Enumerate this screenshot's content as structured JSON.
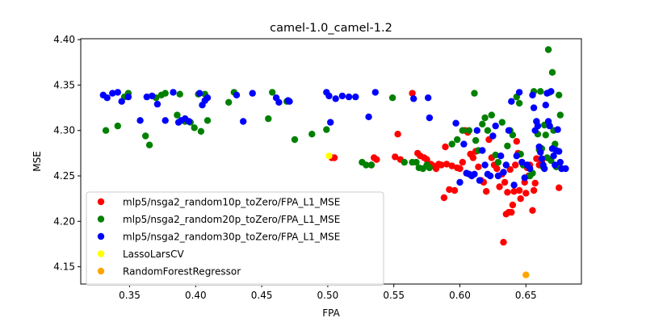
{
  "chart_data": {
    "type": "scatter",
    "title": "camel-1.0_camel-1.2",
    "xlabel": "FPA",
    "ylabel": "MSE",
    "xlim": [
      0.313,
      0.692
    ],
    "ylim": [
      4.131,
      4.401
    ],
    "xticks": [
      0.35,
      0.4,
      0.45,
      0.5,
      0.55,
      0.6,
      0.65
    ],
    "xtick_labels": [
      "0.35",
      "0.40",
      "0.45",
      "0.50",
      "0.55",
      "0.60",
      "0.65"
    ],
    "yticks": [
      4.15,
      4.2,
      4.25,
      4.3,
      4.35,
      4.4
    ],
    "ytick_labels": [
      "4.15",
      "4.20",
      "4.25",
      "4.30",
      "4.35",
      "4.40"
    ],
    "legend_position": "lower-left",
    "series": [
      {
        "name": "mlp5/nsga2_random10p_toZero/FPA_L1_MSE",
        "color": "#ff0000",
        "points": [
          [
            0.505,
            4.27
          ],
          [
            0.503,
            4.27
          ],
          [
            0.533,
            4.262
          ],
          [
            0.535,
            4.27
          ],
          [
            0.537,
            4.268
          ],
          [
            0.551,
            4.271
          ],
          [
            0.553,
            4.296
          ],
          [
            0.555,
            4.268
          ],
          [
            0.564,
            4.341
          ],
          [
            0.568,
            4.275
          ],
          [
            0.57,
            4.272
          ],
          [
            0.573,
            4.27
          ],
          [
            0.575,
            4.268
          ],
          [
            0.578,
            4.263
          ],
          [
            0.58,
            4.261
          ],
          [
            0.582,
            4.258
          ],
          [
            0.584,
            4.263
          ],
          [
            0.586,
            4.262
          ],
          [
            0.588,
            4.226
          ],
          [
            0.589,
            4.282
          ],
          [
            0.59,
            4.263
          ],
          [
            0.592,
            4.235
          ],
          [
            0.594,
            4.261
          ],
          [
            0.596,
            4.234
          ],
          [
            0.598,
            4.259
          ],
          [
            0.6,
            4.258
          ],
          [
            0.602,
            4.265
          ],
          [
            0.604,
            4.3
          ],
          [
            0.606,
            4.298
          ],
          [
            0.608,
            4.274
          ],
          [
            0.61,
            4.27
          ],
          [
            0.612,
            4.277
          ],
          [
            0.614,
            4.26
          ],
          [
            0.616,
            4.245
          ],
          [
            0.618,
            4.243
          ],
          [
            0.62,
            4.233
          ],
          [
            0.622,
            4.29
          ],
          [
            0.624,
            4.27
          ],
          [
            0.626,
            4.262
          ],
          [
            0.628,
            4.258
          ],
          [
            0.63,
            4.238
          ],
          [
            0.632,
            4.252
          ],
          [
            0.633,
            4.177
          ],
          [
            0.634,
            4.243
          ],
          [
            0.635,
            4.208
          ],
          [
            0.636,
            4.232
          ],
          [
            0.637,
            4.21
          ],
          [
            0.638,
            4.257
          ],
          [
            0.639,
            4.21
          ],
          [
            0.64,
            4.218
          ],
          [
            0.641,
            4.233
          ],
          [
            0.642,
            4.262
          ],
          [
            0.643,
            4.288
          ],
          [
            0.644,
            4.275
          ],
          [
            0.645,
            4.234
          ],
          [
            0.646,
            4.225
          ],
          [
            0.647,
            4.265
          ],
          [
            0.648,
            4.262
          ],
          [
            0.649,
            4.243
          ],
          [
            0.65,
            4.231
          ],
          [
            0.651,
            4.259
          ],
          [
            0.652,
            4.25
          ],
          [
            0.653,
            4.262
          ],
          [
            0.655,
            4.212
          ],
          [
            0.656,
            4.234
          ],
          [
            0.657,
            4.242
          ],
          [
            0.658,
            4.269
          ],
          [
            0.66,
            4.262
          ],
          [
            0.662,
            4.266
          ],
          [
            0.675,
            4.237
          ]
        ]
      },
      {
        "name": "mlp5/nsga2_random20p_toZero/FPA_L1_MSE",
        "color": "#008000",
        "points": [
          [
            0.332,
            4.3
          ],
          [
            0.341,
            4.305
          ],
          [
            0.346,
            4.337
          ],
          [
            0.349,
            4.341
          ],
          [
            0.362,
            4.294
          ],
          [
            0.365,
            4.284
          ],
          [
            0.37,
            4.336
          ],
          [
            0.374,
            4.339
          ],
          [
            0.377,
            4.341
          ],
          [
            0.386,
            4.317
          ],
          [
            0.388,
            4.34
          ],
          [
            0.392,
            4.31
          ],
          [
            0.396,
            4.309
          ],
          [
            0.399,
            4.303
          ],
          [
            0.402,
            4.34
          ],
          [
            0.404,
            4.299
          ],
          [
            0.407,
            4.34
          ],
          [
            0.409,
            4.311
          ],
          [
            0.425,
            4.331
          ],
          [
            0.429,
            4.342
          ],
          [
            0.455,
            4.313
          ],
          [
            0.458,
            4.342
          ],
          [
            0.469,
            4.332
          ],
          [
            0.475,
            4.29
          ],
          [
            0.488,
            4.296
          ],
          [
            0.499,
            4.301
          ],
          [
            0.526,
            4.265
          ],
          [
            0.529,
            4.262
          ],
          [
            0.533,
            4.262
          ],
          [
            0.549,
            4.336
          ],
          [
            0.558,
            4.265
          ],
          [
            0.564,
            4.265
          ],
          [
            0.567,
            4.265
          ],
          [
            0.569,
            4.259
          ],
          [
            0.572,
            4.258
          ],
          [
            0.575,
            4.262
          ],
          [
            0.577,
            4.259
          ],
          [
            0.594,
            4.285
          ],
          [
            0.598,
            4.29
          ],
          [
            0.602,
            4.3
          ],
          [
            0.607,
            4.3
          ],
          [
            0.611,
            4.341
          ],
          [
            0.612,
            4.289
          ],
          [
            0.614,
            4.278
          ],
          [
            0.617,
            4.307
          ],
          [
            0.619,
            4.314
          ],
          [
            0.621,
            4.3
          ],
          [
            0.624,
            4.317
          ],
          [
            0.627,
            4.273
          ],
          [
            0.629,
            4.265
          ],
          [
            0.632,
            4.309
          ],
          [
            0.636,
            4.283
          ],
          [
            0.638,
            4.3
          ],
          [
            0.64,
            4.295
          ],
          [
            0.643,
            4.337
          ],
          [
            0.645,
            4.33
          ],
          [
            0.646,
            4.274
          ],
          [
            0.648,
            4.262
          ],
          [
            0.651,
            4.262
          ],
          [
            0.653,
            4.25
          ],
          [
            0.655,
            4.253
          ],
          [
            0.656,
            4.343
          ],
          [
            0.658,
            4.31
          ],
          [
            0.659,
            4.296
          ],
          [
            0.66,
            4.279
          ],
          [
            0.661,
            4.343
          ],
          [
            0.662,
            4.28
          ],
          [
            0.663,
            4.26
          ],
          [
            0.664,
            4.306
          ],
          [
            0.665,
            4.295
          ],
          [
            0.666,
            4.27
          ],
          [
            0.667,
            4.389
          ],
          [
            0.668,
            4.342
          ],
          [
            0.669,
            4.267
          ],
          [
            0.67,
            4.364
          ],
          [
            0.671,
            4.3
          ],
          [
            0.672,
            4.285
          ],
          [
            0.673,
            4.26
          ],
          [
            0.675,
            4.339
          ],
          [
            0.676,
            4.317
          ],
          [
            0.677,
            4.258
          ]
        ]
      },
      {
        "name": "mlp5/nsga2_random30p_toZero/FPA_L1_MSE",
        "color": "#0000ff",
        "points": [
          [
            0.33,
            4.339
          ],
          [
            0.333,
            4.336
          ],
          [
            0.337,
            4.341
          ],
          [
            0.341,
            4.342
          ],
          [
            0.344,
            4.332
          ],
          [
            0.349,
            4.337
          ],
          [
            0.358,
            4.311
          ],
          [
            0.363,
            4.337
          ],
          [
            0.367,
            4.338
          ],
          [
            0.371,
            4.329
          ],
          [
            0.377,
            4.311
          ],
          [
            0.383,
            4.342
          ],
          [
            0.387,
            4.309
          ],
          [
            0.389,
            4.311
          ],
          [
            0.392,
            4.313
          ],
          [
            0.395,
            4.31
          ],
          [
            0.403,
            4.341
          ],
          [
            0.405,
            4.328
          ],
          [
            0.407,
            4.333
          ],
          [
            0.409,
            4.336
          ],
          [
            0.431,
            4.339
          ],
          [
            0.436,
            4.31
          ],
          [
            0.443,
            4.341
          ],
          [
            0.461,
            4.336
          ],
          [
            0.463,
            4.331
          ],
          [
            0.47,
            4.333
          ],
          [
            0.471,
            4.332
          ],
          [
            0.499,
            4.342
          ],
          [
            0.501,
            4.338
          ],
          [
            0.502,
            4.309
          ],
          [
            0.506,
            4.335
          ],
          [
            0.511,
            4.338
          ],
          [
            0.516,
            4.337
          ],
          [
            0.521,
            4.337
          ],
          [
            0.531,
            4.315
          ],
          [
            0.536,
            4.342
          ],
          [
            0.565,
            4.335
          ],
          [
            0.576,
            4.336
          ],
          [
            0.577,
            4.314
          ],
          [
            0.597,
            4.308
          ],
          [
            0.6,
            4.243
          ],
          [
            0.603,
            4.285
          ],
          [
            0.605,
            4.253
          ],
          [
            0.607,
            4.252
          ],
          [
            0.609,
            4.25
          ],
          [
            0.611,
            4.252
          ],
          [
            0.613,
            4.3
          ],
          [
            0.615,
            4.245
          ],
          [
            0.617,
            4.278
          ],
          [
            0.619,
            4.262
          ],
          [
            0.621,
            4.252
          ],
          [
            0.623,
            4.25
          ],
          [
            0.625,
            4.294
          ],
          [
            0.627,
            4.305
          ],
          [
            0.629,
            4.25
          ],
          [
            0.631,
            4.272
          ],
          [
            0.633,
            4.254
          ],
          [
            0.635,
            4.262
          ],
          [
            0.637,
            4.3
          ],
          [
            0.639,
            4.332
          ],
          [
            0.641,
            4.24
          ],
          [
            0.643,
            4.272
          ],
          [
            0.645,
            4.342
          ],
          [
            0.647,
            4.265
          ],
          [
            0.649,
            4.248
          ],
          [
            0.651,
            4.262
          ],
          [
            0.653,
            4.258
          ],
          [
            0.655,
            4.339
          ],
          [
            0.656,
            4.325
          ],
          [
            0.657,
            4.3
          ],
          [
            0.658,
            4.31
          ],
          [
            0.659,
            4.305
          ],
          [
            0.66,
            4.282
          ],
          [
            0.661,
            4.276
          ],
          [
            0.662,
            4.269
          ],
          [
            0.663,
            4.262
          ],
          [
            0.664,
            4.258
          ],
          [
            0.665,
            4.328
          ],
          [
            0.666,
            4.341
          ],
          [
            0.667,
            4.31
          ],
          [
            0.668,
            4.305
          ],
          [
            0.669,
            4.343
          ],
          [
            0.67,
            4.28
          ],
          [
            0.671,
            4.272
          ],
          [
            0.672,
            4.262
          ],
          [
            0.673,
            4.278
          ],
          [
            0.674,
            4.301
          ],
          [
            0.675,
            4.277
          ],
          [
            0.676,
            4.265
          ],
          [
            0.677,
            4.258
          ],
          [
            0.68,
            4.258
          ]
        ]
      },
      {
        "name": "LassoLarsCV",
        "color": "#ffff00",
        "points": [
          [
            0.501,
            4.272
          ]
        ]
      },
      {
        "name": "RandomForestRegressor",
        "color": "#ffa500",
        "points": [
          [
            0.65,
            4.141
          ]
        ]
      }
    ]
  }
}
